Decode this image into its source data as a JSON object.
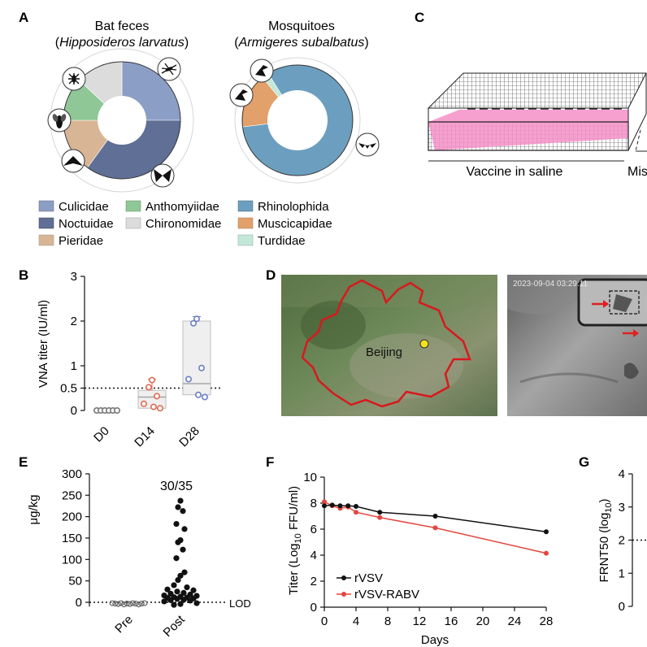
{
  "panels": {
    "a": "A",
    "b": "B",
    "c": "C",
    "d": "D",
    "e": "E",
    "f": "F",
    "g": "G"
  },
  "panel_a": {
    "left_title": "Bat feces",
    "left_subtitle": "Hipposideros larvatus",
    "right_title": "Mosquitoes",
    "right_subtitle": "Armigeres subalbatus",
    "icons": [
      "mosquito-icon",
      "fly-icon",
      "moth-icon",
      "moth-icon",
      "bird-icon",
      "bat-icon"
    ]
  },
  "panel_c": {
    "caption_left": "Vaccine in saline",
    "caption_right": "Mis",
    "colors": {
      "tray_fill": "#f48fc8"
    }
  },
  "panel_d": {
    "city_label": "Beijing",
    "camera_timestamp": "2023-09-04 03:29:11",
    "colors": {
      "border": "#d8191e",
      "marker": "#f4e21a"
    }
  },
  "chart_data": [
    {
      "panel": "A-left",
      "type": "pie",
      "title": "Bat feces",
      "subtitle": "Hipposideros larvatus",
      "slices": [
        {
          "label": "Culicidae",
          "value": 25,
          "color": "#8b9ec6"
        },
        {
          "label": "Noctuidae",
          "value": 35,
          "color": "#5f6f95"
        },
        {
          "label": "Pieridae",
          "value": 15,
          "color": "#d8b595"
        },
        {
          "label": "Anthomyiidae",
          "value": 12,
          "color": "#8fc796"
        },
        {
          "label": "Chironomidae",
          "value": 13,
          "color": "#dcdcdc"
        }
      ]
    },
    {
      "panel": "A-right",
      "type": "pie",
      "title": "Mosquitoes",
      "subtitle": "Armigeres subalbatus",
      "slices": [
        {
          "label": "Rhinolophida",
          "value": 82,
          "color": "#6c9fbf"
        },
        {
          "label": "Muscicapidae",
          "value": 16,
          "color": "#e2a06a"
        },
        {
          "label": "Turdidae",
          "value": 2,
          "color": "#c4e8d8"
        }
      ]
    },
    {
      "panel": "B",
      "type": "scatter",
      "ylabel": "VNA titer (IU/ml)",
      "ylim": [
        0,
        3
      ],
      "yticks": [
        "0",
        "0.5",
        "1",
        "2",
        "3"
      ],
      "threshold": 0.5,
      "categories": [
        "D0",
        "D14",
        "D28"
      ],
      "series": [
        {
          "name": "D0",
          "color": "#777777",
          "values": [
            0,
            0,
            0,
            0,
            0,
            0
          ],
          "box": {
            "q1": 0,
            "median": 0,
            "q3": 0,
            "min": 0,
            "max": 0
          }
        },
        {
          "name": "D14",
          "color": "#e06a55",
          "values": [
            0.68,
            0.52,
            0.32,
            0.15,
            0.08,
            0.05
          ],
          "box": {
            "q1": 0.05,
            "median": 0.3,
            "q3": 0.45,
            "min": 0.05,
            "max": 0.7
          }
        },
        {
          "name": "D28",
          "color": "#6c7fc4",
          "values": [
            2.05,
            1.95,
            0.95,
            0.7,
            0.35,
            0.3
          ],
          "box": {
            "q1": 0.35,
            "median": 0.6,
            "q3": 2.0,
            "min": 0.35,
            "max": 2.1
          }
        }
      ]
    },
    {
      "panel": "E",
      "type": "scatter",
      "ylabel": "μg/kg",
      "ylim": [
        -10,
        300
      ],
      "yticks": [
        "0",
        "50",
        "100",
        "150",
        "200",
        "250",
        "300"
      ],
      "categories": [
        "Pre",
        "Post"
      ],
      "annotation": "30/35",
      "lod_label": "LOD",
      "lod_value": 0,
      "series": [
        {
          "name": "Pre",
          "color": "#666666",
          "values": [
            -2,
            -3,
            -4,
            -2,
            -5,
            -3,
            -4,
            -2,
            -3,
            -5,
            -3,
            -2
          ]
        },
        {
          "name": "Post",
          "color": "#111111",
          "values": [
            237,
            222,
            213,
            183,
            171,
            145,
            140,
            123,
            103,
            70,
            62,
            52,
            40,
            35,
            30,
            28,
            25,
            22,
            20,
            18,
            16,
            15,
            13,
            12,
            11,
            10,
            9,
            8,
            6,
            5,
            4,
            2,
            -2,
            -4,
            -6
          ]
        }
      ]
    },
    {
      "panel": "F",
      "type": "line",
      "xlabel": "Days",
      "ylabel": "Titer (Log10 FFU/ml)",
      "xlim": [
        0,
        28
      ],
      "ylim": [
        0,
        10
      ],
      "xticks": [
        "0",
        "4",
        "8",
        "12",
        "16",
        "20",
        "24",
        "28"
      ],
      "yticks": [
        "0",
        "2",
        "4",
        "6",
        "8",
        "10"
      ],
      "legend": "bottom-left",
      "series": [
        {
          "name": "rVSV",
          "color": "#111111",
          "x": [
            0,
            1,
            2,
            3,
            4,
            7,
            14,
            28
          ],
          "y": [
            7.8,
            7.85,
            7.8,
            7.8,
            7.75,
            7.3,
            7.0,
            5.8
          ]
        },
        {
          "name": "rVSV-RABV",
          "color": "#e3463e",
          "x": [
            0,
            1,
            2,
            3,
            4,
            7,
            14,
            28
          ],
          "y": [
            8.1,
            7.8,
            7.6,
            7.7,
            7.3,
            6.9,
            6.1,
            4.15
          ]
        }
      ]
    },
    {
      "panel": "G",
      "type": "scatter",
      "ylabel": "FRNT50 (log10)",
      "ylim": [
        0,
        4
      ],
      "yticks": [
        "0",
        "1",
        "2",
        "3",
        "4"
      ],
      "threshold": 2
    }
  ]
}
